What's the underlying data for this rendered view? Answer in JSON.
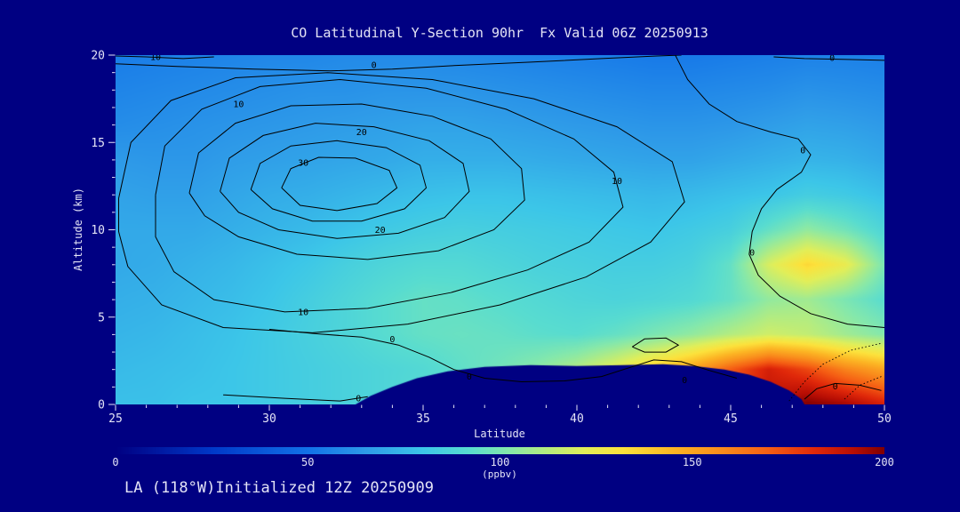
{
  "title": "CO Latitudinal Y-Section 90hr  Fx Valid 06Z 20250913",
  "footer": "LA (118°W)Initialized 12Z 20250909",
  "axes": {
    "x": {
      "label": "Latitude",
      "min": 25,
      "max": 50,
      "major_ticks": [
        25,
        30,
        35,
        40,
        45,
        50
      ],
      "minor_step": 1
    },
    "y": {
      "label": "Altitude (km)",
      "min": 0,
      "max": 20,
      "major_ticks": [
        0,
        5,
        10,
        15,
        20
      ],
      "minor_step": 1
    }
  },
  "colorbar": {
    "label": "(ppbv)",
    "min": 0,
    "max": 200,
    "ticks": [
      0,
      50,
      100,
      150,
      200
    ]
  },
  "colors": {
    "background": "#000082",
    "text": "#E4E4F6",
    "contour_line": "#000000"
  },
  "chart_data": {
    "type": "heatmap",
    "subtype": "filled_contour_cross_section",
    "title": "CO Latitudinal Y-Section 90hr  Fx Valid 06Z 20250913",
    "xlabel": "Latitude",
    "ylabel": "Altitude (km)",
    "units": "ppbv",
    "xlim": [
      25,
      50
    ],
    "ylim": [
      0,
      20
    ],
    "x_latitude": [
      25,
      26.25,
      27.5,
      28.75,
      30,
      31.25,
      32.5,
      33.75,
      35,
      36.25,
      37.5,
      38.75,
      40,
      41.25,
      42.5,
      43.75,
      45,
      46.25,
      47.5,
      48.75,
      50
    ],
    "y_altitude_km": [
      0,
      2,
      4,
      6,
      8,
      10,
      12,
      14,
      16,
      18,
      20
    ],
    "values_ppbv": [
      [
        78,
        78,
        80,
        80,
        82,
        84,
        86,
        88,
        92,
        96,
        100,
        105,
        115,
        130,
        145,
        160,
        175,
        190,
        200,
        195,
        185
      ],
      [
        76,
        77,
        78,
        80,
        82,
        84,
        86,
        88,
        90,
        94,
        98,
        104,
        112,
        124,
        138,
        152,
        170,
        185,
        175,
        160,
        150
      ],
      [
        74,
        75,
        77,
        79,
        82,
        85,
        88,
        92,
        95,
        96,
        95,
        93,
        92,
        95,
        100,
        105,
        112,
        118,
        115,
        108,
        102
      ],
      [
        72,
        73,
        75,
        77,
        80,
        84,
        88,
        92,
        95,
        94,
        92,
        90,
        88,
        87,
        88,
        90,
        95,
        105,
        108,
        100,
        92
      ],
      [
        70,
        71,
        73,
        75,
        78,
        81,
        85,
        88,
        90,
        90,
        88,
        86,
        85,
        84,
        84,
        86,
        95,
        120,
        135,
        125,
        100
      ],
      [
        70,
        70,
        70,
        72,
        74,
        76,
        79,
        82,
        84,
        85,
        84,
        83,
        82,
        81,
        80,
        82,
        85,
        95,
        105,
        98,
        88
      ],
      [
        68,
        67,
        67,
        69,
        71,
        72,
        74,
        76,
        78,
        79,
        79,
        78,
        77,
        76,
        75,
        76,
        78,
        80,
        84,
        82,
        78
      ],
      [
        65,
        64,
        64,
        66,
        67,
        68,
        69,
        70,
        72,
        72,
        72,
        71,
        70,
        69,
        68,
        68,
        70,
        72,
        74,
        73,
        70
      ],
      [
        60,
        61,
        62,
        63,
        64,
        65,
        66,
        67,
        68,
        68,
        67,
        66,
        65,
        64,
        63,
        63,
        64,
        66,
        68,
        67,
        65
      ],
      [
        57,
        58,
        59,
        60,
        61,
        62,
        62,
        63,
        63,
        63,
        62,
        61,
        60,
        59,
        58,
        58,
        59,
        60,
        62,
        61,
        60
      ],
      [
        54,
        55,
        56,
        57,
        58,
        58,
        59,
        59,
        59,
        58,
        57,
        56,
        55,
        54,
        53,
        53,
        54,
        55,
        56,
        56,
        55
      ]
    ],
    "colormap_stops": [
      [
        0,
        "#000082"
      ],
      [
        25,
        "#0038C8"
      ],
      [
        50,
        "#1272E8"
      ],
      [
        65,
        "#2E9AE8"
      ],
      [
        80,
        "#3CC6E8"
      ],
      [
        92,
        "#58DCD0"
      ],
      [
        102,
        "#84E8AC"
      ],
      [
        112,
        "#B4EC80"
      ],
      [
        122,
        "#E2EE58"
      ],
      [
        132,
        "#FCE23C"
      ],
      [
        145,
        "#FCB524"
      ],
      [
        158,
        "#F98C1C"
      ],
      [
        170,
        "#F55E14"
      ],
      [
        182,
        "#E0280A"
      ],
      [
        192,
        "#B80E04"
      ],
      [
        200,
        "#800000"
      ]
    ],
    "terrain_outline": [
      [
        32.8,
        0
      ],
      [
        33.3,
        0.5
      ],
      [
        34.0,
        1.0
      ],
      [
        34.8,
        1.5
      ],
      [
        35.8,
        1.9
      ],
      [
        37.0,
        2.15
      ],
      [
        38.5,
        2.25
      ],
      [
        40.0,
        2.2
      ],
      [
        41.5,
        2.25
      ],
      [
        42.8,
        2.3
      ],
      [
        43.8,
        2.2
      ],
      [
        44.8,
        2.0
      ],
      [
        45.6,
        1.7
      ],
      [
        46.3,
        1.3
      ],
      [
        46.9,
        0.8
      ],
      [
        47.3,
        0.3
      ],
      [
        47.4,
        0
      ]
    ],
    "contour_lines": [
      {
        "level": "30",
        "points": [
          [
            30.4,
            12.4
          ],
          [
            30.7,
            13.5
          ],
          [
            31.6,
            14.15
          ],
          [
            32.8,
            14.1
          ],
          [
            33.9,
            13.4
          ],
          [
            34.15,
            12.4
          ],
          [
            33.5,
            11.5
          ],
          [
            32.2,
            11.1
          ],
          [
            31.0,
            11.4
          ],
          [
            30.4,
            12.4
          ]
        ],
        "labels": [
          [
            31.1,
            13.85
          ]
        ]
      },
      {
        "level": "25",
        "points": [
          [
            29.4,
            12.3
          ],
          [
            29.7,
            13.8
          ],
          [
            30.7,
            14.8
          ],
          [
            32.2,
            15.1
          ],
          [
            33.8,
            14.7
          ],
          [
            34.9,
            13.7
          ],
          [
            35.1,
            12.4
          ],
          [
            34.4,
            11.2
          ],
          [
            33.0,
            10.5
          ],
          [
            31.4,
            10.5
          ],
          [
            30.1,
            11.2
          ],
          [
            29.4,
            12.3
          ]
        ],
        "labels": []
      },
      {
        "level": "20",
        "points": [
          [
            28.4,
            12.2
          ],
          [
            28.7,
            14.1
          ],
          [
            29.8,
            15.4
          ],
          [
            31.5,
            16.1
          ],
          [
            33.4,
            15.9
          ],
          [
            35.2,
            15.1
          ],
          [
            36.3,
            13.8
          ],
          [
            36.5,
            12.2
          ],
          [
            35.7,
            10.7
          ],
          [
            34.2,
            9.8
          ],
          [
            32.2,
            9.5
          ],
          [
            30.3,
            10.0
          ],
          [
            29.0,
            11.0
          ],
          [
            28.4,
            12.2
          ]
        ],
        "labels": [
          [
            33.0,
            15.6
          ],
          [
            33.6,
            10.0
          ]
        ]
      },
      {
        "level": "15",
        "points": [
          [
            27.4,
            12.1
          ],
          [
            27.7,
            14.4
          ],
          [
            28.9,
            16.1
          ],
          [
            30.7,
            17.1
          ],
          [
            33.0,
            17.2
          ],
          [
            35.3,
            16.5
          ],
          [
            37.2,
            15.2
          ],
          [
            38.2,
            13.5
          ],
          [
            38.3,
            11.7
          ],
          [
            37.3,
            10.0
          ],
          [
            35.5,
            8.8
          ],
          [
            33.2,
            8.3
          ],
          [
            30.9,
            8.6
          ],
          [
            29.0,
            9.6
          ],
          [
            27.9,
            10.8
          ],
          [
            27.4,
            12.1
          ]
        ],
        "labels": []
      },
      {
        "level": "10",
        "points": [
          [
            26.3,
            12.0
          ],
          [
            26.6,
            14.8
          ],
          [
            27.8,
            16.9
          ],
          [
            29.7,
            18.2
          ],
          [
            32.3,
            18.6
          ],
          [
            35.1,
            18.1
          ],
          [
            37.7,
            16.9
          ],
          [
            39.9,
            15.2
          ],
          [
            41.2,
            13.3
          ],
          [
            41.5,
            11.3
          ],
          [
            40.4,
            9.3
          ],
          [
            38.4,
            7.7
          ],
          [
            35.9,
            6.4
          ],
          [
            33.2,
            5.5
          ],
          [
            30.5,
            5.3
          ],
          [
            28.2,
            6.0
          ],
          [
            26.9,
            7.6
          ],
          [
            26.3,
            9.6
          ],
          [
            26.3,
            12.0
          ]
        ],
        "labels": [
          [
            29.0,
            17.2
          ],
          [
            41.3,
            12.8
          ],
          [
            31.1,
            5.3
          ]
        ]
      },
      {
        "level": "5",
        "points": [
          [
            25.1,
            11.8
          ],
          [
            25.5,
            15.0
          ],
          [
            26.8,
            17.4
          ],
          [
            28.9,
            18.7
          ],
          [
            31.9,
            19.0
          ],
          [
            35.3,
            18.6
          ],
          [
            38.6,
            17.5
          ],
          [
            41.3,
            15.9
          ],
          [
            43.1,
            13.9
          ],
          [
            43.5,
            11.6
          ],
          [
            42.4,
            9.3
          ],
          [
            40.3,
            7.3
          ],
          [
            37.5,
            5.7
          ],
          [
            34.5,
            4.6
          ],
          [
            31.4,
            4.1
          ],
          [
            28.5,
            4.4
          ],
          [
            26.5,
            5.7
          ],
          [
            25.4,
            7.9
          ],
          [
            25.1,
            9.9
          ],
          [
            25.1,
            11.8
          ]
        ],
        "labels": []
      },
      {
        "level": "0",
        "points": [
          [
            25.0,
            19.5
          ],
          [
            27.0,
            19.35
          ],
          [
            29.5,
            19.2
          ],
          [
            32.0,
            19.1
          ],
          [
            34.0,
            19.2
          ],
          [
            36.0,
            19.4
          ],
          [
            38.5,
            19.6
          ],
          [
            40.8,
            19.8
          ],
          [
            42.6,
            19.95
          ],
          [
            43.4,
            20.0
          ]
        ],
        "labels": [
          [
            33.4,
            19.45
          ]
        ]
      },
      {
        "level": "10",
        "points": [
          [
            25.0,
            19.95
          ],
          [
            26.0,
            19.9
          ],
          [
            27.2,
            19.8
          ],
          [
            28.2,
            19.9
          ]
        ],
        "labels": [
          [
            26.3,
            19.9
          ]
        ]
      },
      {
        "level": "0",
        "points": [
          [
            43.2,
            20.0
          ],
          [
            43.6,
            18.6
          ],
          [
            44.3,
            17.2
          ],
          [
            45.2,
            16.2
          ],
          [
            46.3,
            15.6
          ],
          [
            47.2,
            15.2
          ],
          [
            47.6,
            14.3
          ],
          [
            47.3,
            13.3
          ],
          [
            46.5,
            12.3
          ],
          [
            46.0,
            11.2
          ],
          [
            45.7,
            9.9
          ],
          [
            45.6,
            8.6
          ],
          [
            45.9,
            7.4
          ],
          [
            46.6,
            6.2
          ],
          [
            47.6,
            5.2
          ],
          [
            48.8,
            4.6
          ],
          [
            50.0,
            4.4
          ]
        ],
        "labels": [
          [
            45.7,
            8.7
          ],
          [
            47.35,
            14.55
          ]
        ]
      },
      {
        "level": "0",
        "points": [
          [
            46.4,
            19.9
          ],
          [
            47.4,
            19.8
          ],
          [
            48.8,
            19.75
          ],
          [
            50.0,
            19.7
          ]
        ],
        "labels": [
          [
            48.3,
            19.85
          ]
        ]
      },
      {
        "level": "0",
        "points": [
          [
            30.0,
            4.3
          ],
          [
            31.5,
            4.05
          ],
          [
            33.0,
            3.85
          ],
          [
            34.2,
            3.4
          ],
          [
            35.2,
            2.7
          ],
          [
            36.0,
            2.0
          ],
          [
            37.0,
            1.5
          ],
          [
            38.2,
            1.3
          ],
          [
            39.6,
            1.35
          ],
          [
            40.8,
            1.6
          ],
          [
            41.7,
            2.1
          ],
          [
            42.5,
            2.55
          ],
          [
            43.4,
            2.45
          ],
          [
            44.3,
            1.95
          ],
          [
            45.2,
            1.5
          ]
        ],
        "labels": [
          [
            34.0,
            3.75
          ],
          [
            36.5,
            1.6
          ],
          [
            43.5,
            1.4
          ]
        ]
      },
      {
        "level": "0",
        "points": [
          [
            28.5,
            0.55
          ],
          [
            30.5,
            0.35
          ],
          [
            32.3,
            0.2
          ],
          [
            33.2,
            0.45
          ]
        ],
        "labels": [
          [
            32.9,
            0.35
          ]
        ]
      },
      {
        "level": "0",
        "points": [
          [
            41.8,
            3.3
          ],
          [
            42.2,
            3.75
          ],
          [
            42.9,
            3.8
          ],
          [
            43.3,
            3.4
          ],
          [
            42.9,
            3.0
          ],
          [
            42.2,
            3.0
          ],
          [
            41.8,
            3.3
          ]
        ],
        "labels": []
      },
      {
        "level": "0",
        "points": [
          [
            47.4,
            0.3
          ],
          [
            47.8,
            0.9
          ],
          [
            48.4,
            1.2
          ],
          [
            49.2,
            1.1
          ],
          [
            49.9,
            0.8
          ]
        ],
        "labels": [
          [
            48.4,
            1.05
          ]
        ]
      }
    ],
    "dashed_contour_lines": [
      {
        "points": [
          [
            46.9,
            0.2
          ],
          [
            47.4,
            1.3
          ],
          [
            48.0,
            2.3
          ],
          [
            48.9,
            3.1
          ],
          [
            49.9,
            3.5
          ]
        ]
      },
      {
        "points": [
          [
            48.7,
            0.3
          ],
          [
            49.2,
            1.1
          ],
          [
            49.9,
            1.6
          ]
        ]
      }
    ]
  }
}
